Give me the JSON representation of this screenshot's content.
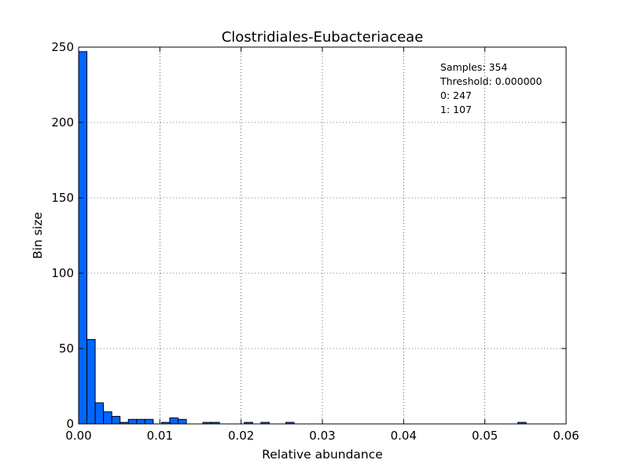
{
  "chart_data": {
    "type": "bar",
    "title": "Clostridiales-Eubacteriaceae",
    "xlabel": "Relative abundance",
    "ylabel": "Bin size",
    "xlim": [
      0.0,
      0.06
    ],
    "ylim": [
      0,
      250
    ],
    "xticks": [
      "0.00",
      "0.01",
      "0.02",
      "0.03",
      "0.04",
      "0.05",
      "0.06"
    ],
    "yticks": [
      "0",
      "50",
      "100",
      "150",
      "200",
      "250"
    ],
    "grid": true,
    "bar_color": "#0066ff",
    "bin_width": 0.00102,
    "bins": [
      {
        "x": 0.0,
        "count": 247
      },
      {
        "x": 0.00102,
        "count": 56
      },
      {
        "x": 0.00204,
        "count": 14
      },
      {
        "x": 0.00306,
        "count": 8
      },
      {
        "x": 0.00408,
        "count": 5
      },
      {
        "x": 0.0051,
        "count": 1
      },
      {
        "x": 0.00612,
        "count": 3
      },
      {
        "x": 0.00714,
        "count": 3
      },
      {
        "x": 0.00816,
        "count": 3
      },
      {
        "x": 0.0102,
        "count": 1
      },
      {
        "x": 0.01122,
        "count": 4
      },
      {
        "x": 0.01224,
        "count": 3
      },
      {
        "x": 0.0153,
        "count": 1
      },
      {
        "x": 0.01632,
        "count": 1
      },
      {
        "x": 0.0204,
        "count": 1
      },
      {
        "x": 0.02244,
        "count": 1
      },
      {
        "x": 0.0255,
        "count": 1
      },
      {
        "x": 0.05406,
        "count": 1
      }
    ],
    "annotations": [
      "Samples: 354",
      "Threshold: 0.000000",
      "0: 247",
      "1: 107"
    ]
  }
}
